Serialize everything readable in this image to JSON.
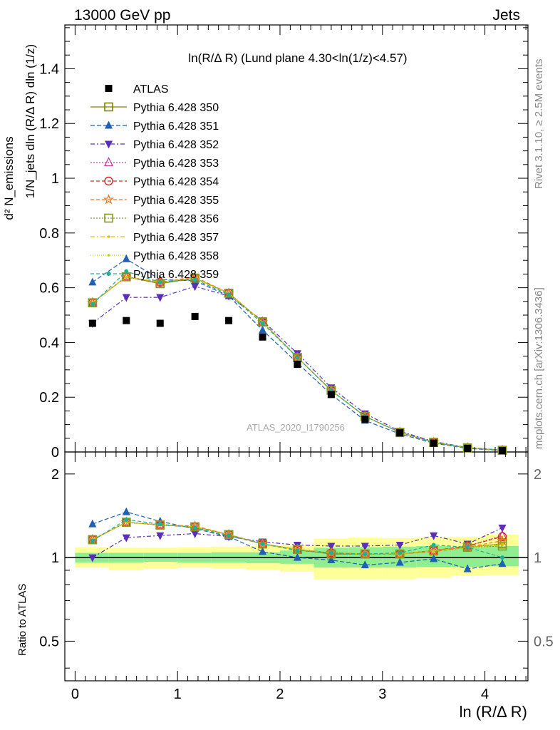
{
  "header": {
    "left": "13000 GeV pp",
    "right": "Jets"
  },
  "side_texts": {
    "rivet": "Rivet 3.1.10, ≥ 2.5M events",
    "mcplots": "mcplots.cern.ch [arXiv:1306.3436]"
  },
  "chart_data": {
    "type": "line",
    "title": "ln(R/Δ R) (Lund plane 4.30<ln(1/z)<4.57)",
    "watermark": "ATLAS_2020_I1790256",
    "xlabel": "ln (R/Δ R)",
    "ylabel_top": "1/N_jets dln (R/Δ R) dln (1/z)",
    "ylabel_top_num": "d² N_emissions",
    "ylabel_ratio": "Ratio to ATLAS",
    "xlim": [
      -0.1,
      4.42
    ],
    "ylim_main": [
      0,
      1.56
    ],
    "ylim_ratio": [
      0.36,
      2.4
    ],
    "yscale_ratio": "log",
    "x_ticks": [
      "0",
      "1",
      "2",
      "3",
      "4"
    ],
    "y_ticks_main": [
      "0",
      "0.2",
      "0.4",
      "0.6",
      "0.8",
      "1",
      "1.2",
      "1.4"
    ],
    "y_ticks_ratio": [
      "0.5",
      "1",
      "2"
    ],
    "x": [
      0.17,
      0.5,
      0.83,
      1.17,
      1.5,
      1.83,
      2.17,
      2.5,
      2.83,
      3.17,
      3.5,
      3.83,
      4.17
    ],
    "atlas": [
      0.47,
      0.48,
      0.47,
      0.495,
      0.48,
      0.42,
      0.32,
      0.21,
      0.12,
      0.07,
      0.032,
      0.013,
      0.005
    ],
    "bands": {
      "x_edges": [
        0.0,
        0.33,
        0.67,
        1.0,
        1.33,
        1.67,
        2.0,
        2.33,
        2.67,
        3.0,
        3.33,
        3.67,
        4.0,
        4.33
      ],
      "inner_lo": [
        0.96,
        0.96,
        0.965,
        0.96,
        0.96,
        0.955,
        0.95,
        0.92,
        0.92,
        0.92,
        0.925,
        0.925,
        0.93
      ],
      "inner_hi": [
        1.04,
        1.04,
        1.04,
        1.04,
        1.045,
        1.045,
        1.06,
        1.085,
        1.09,
        1.095,
        1.1,
        1.09,
        1.1
      ],
      "outer_lo": [
        0.92,
        0.9,
        0.91,
        0.92,
        0.915,
        0.905,
        0.89,
        0.835,
        0.835,
        0.835,
        0.845,
        0.86,
        0.865
      ],
      "outer_hi": [
        1.09,
        1.085,
        1.085,
        1.09,
        1.095,
        1.1,
        1.11,
        1.17,
        1.18,
        1.175,
        1.18,
        1.185,
        1.21
      ],
      "inner_color": "#90ee90",
      "outer_color": "#ffff99"
    },
    "series": [
      {
        "name": "Pythia 6.428 350",
        "color": "#808000",
        "dash": "",
        "marker": "open-square",
        "values": [
          0.545,
          0.64,
          0.615,
          0.635,
          0.58,
          0.475,
          0.345,
          0.225,
          0.13,
          0.072,
          0.035,
          0.015,
          0.006
        ],
        "ratio": [
          1.16,
          1.34,
          1.31,
          1.29,
          1.21,
          1.12,
          1.07,
          1.03,
          1.03,
          1.03,
          1.06,
          1.09,
          1.12
        ]
      },
      {
        "name": "Pythia 6.428 351",
        "color": "#1f5fb4",
        "dash": "6,3",
        "marker": "triangle-up",
        "values": [
          0.62,
          0.705,
          0.63,
          0.625,
          0.57,
          0.445,
          0.325,
          0.21,
          0.115,
          0.066,
          0.032,
          0.013,
          0.005
        ],
        "ratio": [
          1.32,
          1.46,
          1.35,
          1.27,
          1.19,
          1.05,
          1.0,
          0.98,
          0.94,
          0.96,
          0.99,
          0.91,
          0.95
        ]
      },
      {
        "name": "Pythia 6.428 352",
        "color": "#5b2db8",
        "dash": "6,3,2,3",
        "marker": "triangle-down",
        "values": [
          0.47,
          0.565,
          0.565,
          0.605,
          0.57,
          0.48,
          0.36,
          0.235,
          0.14,
          0.076,
          0.038,
          0.016,
          0.007
        ],
        "ratio": [
          1.0,
          1.18,
          1.2,
          1.22,
          1.19,
          1.14,
          1.11,
          1.1,
          1.1,
          1.11,
          1.2,
          1.12,
          1.28
        ]
      },
      {
        "name": "Pythia 6.428 353",
        "color": "#c040a0",
        "dash": "2,2",
        "marker": "open-triangle",
        "values": [
          0.545,
          0.64,
          0.62,
          0.635,
          0.58,
          0.475,
          0.345,
          0.225,
          0.13,
          0.072,
          0.035,
          0.015,
          0.006
        ],
        "ratio": [
          1.16,
          1.34,
          1.31,
          1.29,
          1.21,
          1.12,
          1.07,
          1.04,
          1.03,
          1.03,
          1.06,
          1.1,
          1.2
        ]
      },
      {
        "name": "Pythia 6.428 354",
        "color": "#e02020",
        "dash": "5,3",
        "marker": "open-circle",
        "values": [
          0.545,
          0.64,
          0.62,
          0.635,
          0.58,
          0.475,
          0.345,
          0.225,
          0.13,
          0.072,
          0.035,
          0.015,
          0.006
        ],
        "ratio": [
          1.16,
          1.34,
          1.31,
          1.29,
          1.21,
          1.12,
          1.07,
          1.04,
          1.03,
          1.03,
          1.06,
          1.1,
          1.19
        ]
      },
      {
        "name": "Pythia 6.428 355",
        "color": "#f07820",
        "dash": "5,3",
        "marker": "open-star",
        "values": [
          0.545,
          0.64,
          0.62,
          0.64,
          0.58,
          0.475,
          0.345,
          0.225,
          0.13,
          0.072,
          0.035,
          0.015,
          0.006
        ],
        "ratio": [
          1.16,
          1.34,
          1.31,
          1.3,
          1.21,
          1.12,
          1.07,
          1.04,
          1.03,
          1.03,
          1.05,
          1.09,
          1.15
        ]
      },
      {
        "name": "Pythia 6.428 356",
        "color": "#8a9a20",
        "dash": "2,2",
        "marker": "open-square",
        "values": [
          0.545,
          0.64,
          0.615,
          0.635,
          0.58,
          0.475,
          0.345,
          0.225,
          0.13,
          0.072,
          0.035,
          0.015,
          0.006
        ],
        "ratio": [
          1.16,
          1.34,
          1.31,
          1.29,
          1.21,
          1.12,
          1.07,
          1.03,
          1.03,
          1.03,
          1.06,
          1.09,
          1.1
        ]
      },
      {
        "name": "Pythia 6.428 357",
        "color": "#e0c000",
        "dash": "6,3,2,3",
        "marker": "small-dot",
        "values": [
          0.545,
          0.64,
          0.62,
          0.635,
          0.58,
          0.475,
          0.345,
          0.225,
          0.13,
          0.072,
          0.035,
          0.015,
          0.006
        ],
        "ratio": [
          1.16,
          1.34,
          1.31,
          1.29,
          1.21,
          1.12,
          1.07,
          1.04,
          1.03,
          1.03,
          1.06,
          1.09,
          1.11
        ]
      },
      {
        "name": "Pythia 6.428 358",
        "color": "#b8d010",
        "dash": "1,2",
        "marker": "small-dot",
        "values": [
          0.545,
          0.64,
          0.62,
          0.635,
          0.58,
          0.475,
          0.345,
          0.225,
          0.13,
          0.072,
          0.035,
          0.015,
          0.006
        ],
        "ratio": [
          1.16,
          1.34,
          1.31,
          1.29,
          1.21,
          1.12,
          1.07,
          1.04,
          1.03,
          1.03,
          1.06,
          1.09,
          1.12
        ]
      },
      {
        "name": "Pythia 6.428 359",
        "color": "#20b090",
        "dash": "5,3",
        "marker": "dot",
        "values": [
          0.54,
          0.66,
          0.62,
          0.63,
          0.575,
          0.47,
          0.345,
          0.225,
          0.13,
          0.072,
          0.036,
          0.015,
          0.006
        ],
        "ratio": [
          1.15,
          1.37,
          1.32,
          1.28,
          1.2,
          1.12,
          1.06,
          1.04,
          1.03,
          1.04,
          1.11,
          1.09,
          1.0
        ]
      }
    ],
    "legend_label_atlas": "ATLAS",
    "legend_position": "top-left"
  }
}
